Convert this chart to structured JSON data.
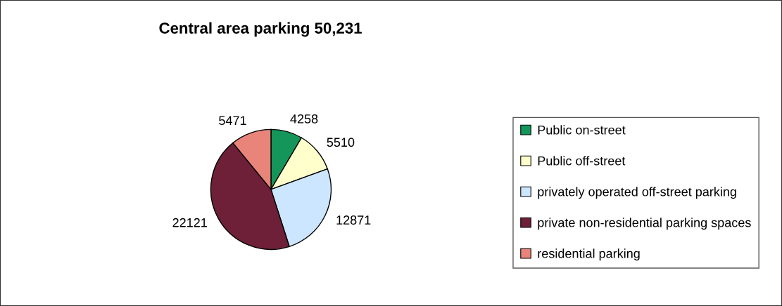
{
  "chart_data": {
    "type": "pie",
    "title": "Central area parking 50,231",
    "categories": [
      "Public on-street",
      "Public off-street",
      "privately operated off-street parking",
      "private non-residential parking spaces",
      "residential parking"
    ],
    "values": [
      4258,
      5510,
      12871,
      22121,
      5471
    ],
    "colors": [
      "#14965a",
      "#ffffcc",
      "#cce6ff",
      "#6e2038",
      "#e8847a"
    ],
    "data_labels": true,
    "legend": "right"
  }
}
